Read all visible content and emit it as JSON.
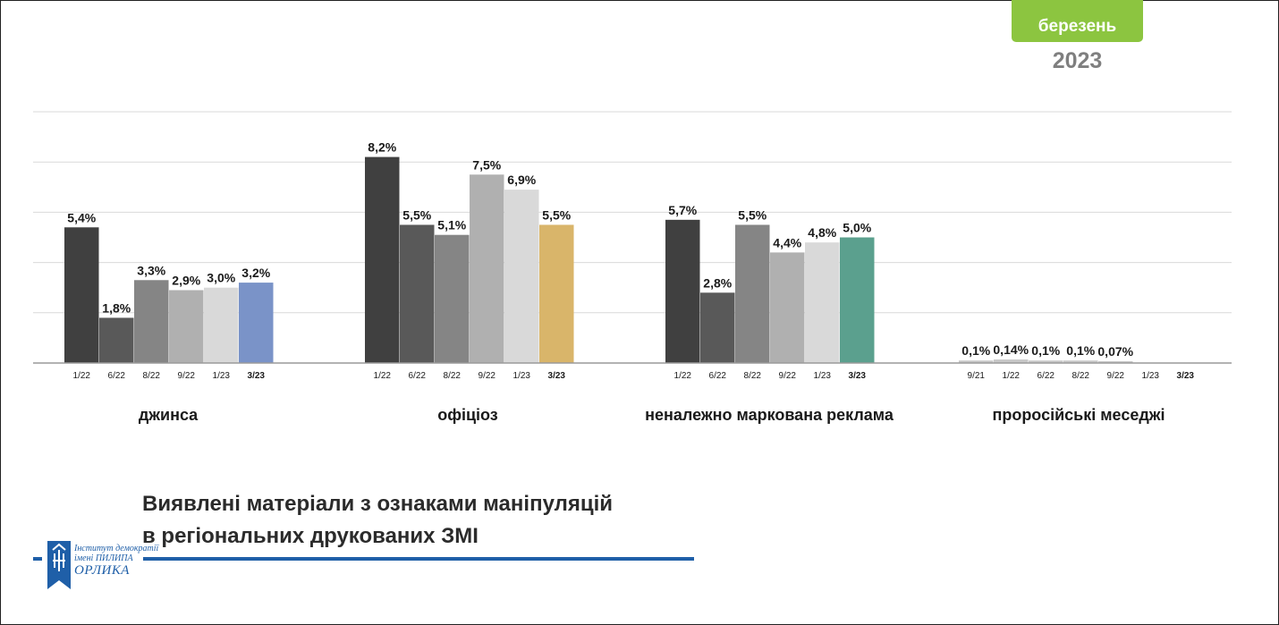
{
  "badge": {
    "month": "березень",
    "year": "2023"
  },
  "title": {
    "line1": "Виявлені матеріали з ознаками маніпуляцій",
    "line2": "в регіональних друкованих ЗМІ"
  },
  "logo": {
    "line1": "Інститут демократії",
    "line2": "імені ПИЛИПА",
    "line3": "ОРЛИКА"
  },
  "colors": {
    "series_greys": [
      "#404040",
      "#595959",
      "#858585",
      "#b0b0b0",
      "#d9d9d9"
    ],
    "accent_dzhynsa": "#7a93c8",
    "accent_ofitsioz": "#d9b56a",
    "accent_reklama": "#5ba08e",
    "badge": "#8cc540",
    "title_rule": "#1f5fa8"
  },
  "chart_data": {
    "type": "bar",
    "ylim": [
      0,
      10
    ],
    "grid": true,
    "groups": [
      {
        "name": "джинса",
        "x": [
          "1/22",
          "6/22",
          "8/22",
          "9/22",
          "1/23",
          "3/23"
        ],
        "values": [
          5.4,
          1.8,
          3.3,
          2.9,
          3.0,
          3.2
        ],
        "labels": [
          "5,4%",
          "1,8%",
          "3,3%",
          "2,9%",
          "3,0%",
          "3,2%"
        ],
        "highlight_color": "#7a93c8"
      },
      {
        "name": "офіціоз",
        "x": [
          "1/22",
          "6/22",
          "8/22",
          "9/22",
          "1/23",
          "3/23"
        ],
        "values": [
          8.2,
          5.5,
          5.1,
          7.5,
          6.9,
          5.5
        ],
        "labels": [
          "8,2%",
          "5,5%",
          "5,1%",
          "7,5%",
          "6,9%",
          "5,5%"
        ],
        "highlight_color": "#d9b56a"
      },
      {
        "name": "неналежно маркована реклама",
        "x": [
          "1/22",
          "6/22",
          "8/22",
          "9/22",
          "1/23",
          "3/23"
        ],
        "values": [
          5.7,
          2.8,
          5.5,
          4.4,
          4.8,
          5.0
        ],
        "labels": [
          "5,7%",
          "2,8%",
          "5,5%",
          "4,4%",
          "4,8%",
          "5,0%"
        ],
        "highlight_color": "#5ba08e"
      },
      {
        "name": "проросійські меседжі",
        "x": [
          "9/21",
          "1/22",
          "6/22",
          "8/22",
          "9/22",
          "1/23",
          "3/23"
        ],
        "values": [
          0.1,
          0.14,
          0.1,
          0.1,
          0.07,
          0,
          0
        ],
        "labels": [
          "0,1%",
          "0,14%",
          "0,1%",
          "0,1%",
          "0,07%",
          "",
          ""
        ],
        "highlight_color": "#c7c7c7"
      }
    ]
  }
}
